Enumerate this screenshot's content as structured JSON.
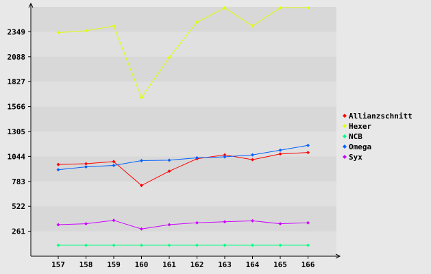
{
  "chart_data": {
    "type": "line",
    "x": [
      157,
      158,
      159,
      160,
      161,
      162,
      163,
      164,
      165,
      166
    ],
    "yticks": [
      261,
      522,
      783,
      1044,
      1305,
      1566,
      1827,
      2088,
      2349
    ],
    "ylim": [
      0,
      2610
    ],
    "grid": true,
    "legend_position": "right",
    "series": [
      {
        "name": "Allianzschnitt",
        "color": "#ff0000",
        "values": [
          960,
          968,
          990,
          740,
          890,
          1020,
          1060,
          1010,
          1070,
          1085
        ]
      },
      {
        "name": "Hexer",
        "color": "#e0ff00",
        "values": [
          2340,
          2360,
          2410,
          1660,
          2080,
          2450,
          2600,
          2410,
          2600,
          2600
        ]
      },
      {
        "name": "NCB",
        "color": "#00ff80",
        "values": [
          115,
          115,
          115,
          115,
          115,
          115,
          115,
          115,
          115,
          115
        ]
      },
      {
        "name": "Omega",
        "color": "#0060ff",
        "values": [
          905,
          935,
          950,
          1000,
          1005,
          1030,
          1040,
          1060,
          1110,
          1160
        ]
      },
      {
        "name": "Syx",
        "color": "#cc00ff",
        "values": [
          330,
          340,
          375,
          285,
          330,
          350,
          360,
          370,
          340,
          350
        ]
      }
    ]
  }
}
